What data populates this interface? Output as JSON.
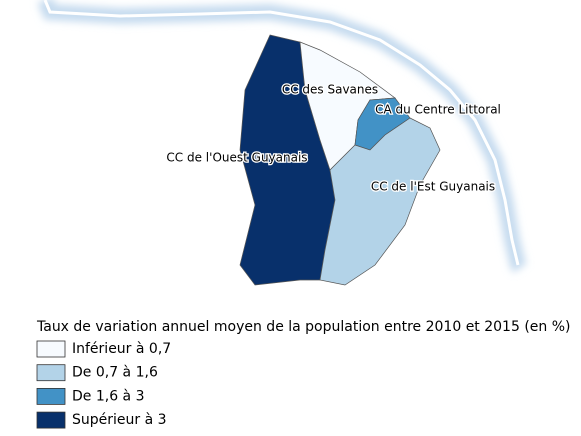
{
  "regions": [
    {
      "name": "CC de l'Ouest Guyanais",
      "color": "#08306b"
    },
    {
      "name": "CC des Savanes",
      "color": "#f7fbff"
    },
    {
      "name": "CA du Centre Littoral",
      "color": "#4292c6"
    },
    {
      "name": "CC de l'Est Guyanais",
      "color": "#b3d3e8"
    }
  ],
  "legend": {
    "title": "Taux de variation annuel moyen de la population entre 2010 et 2015 (en %)",
    "items": [
      {
        "label": "Inférieur à 0,7",
        "color": "#f7fbff"
      },
      {
        "label": "De 0,7 à 1,6",
        "color": "#b3d3e8"
      },
      {
        "label": "De 1,6 à 3",
        "color": "#4292c6"
      },
      {
        "label": "Supérieur à 3",
        "color": "#08306b"
      }
    ]
  }
}
